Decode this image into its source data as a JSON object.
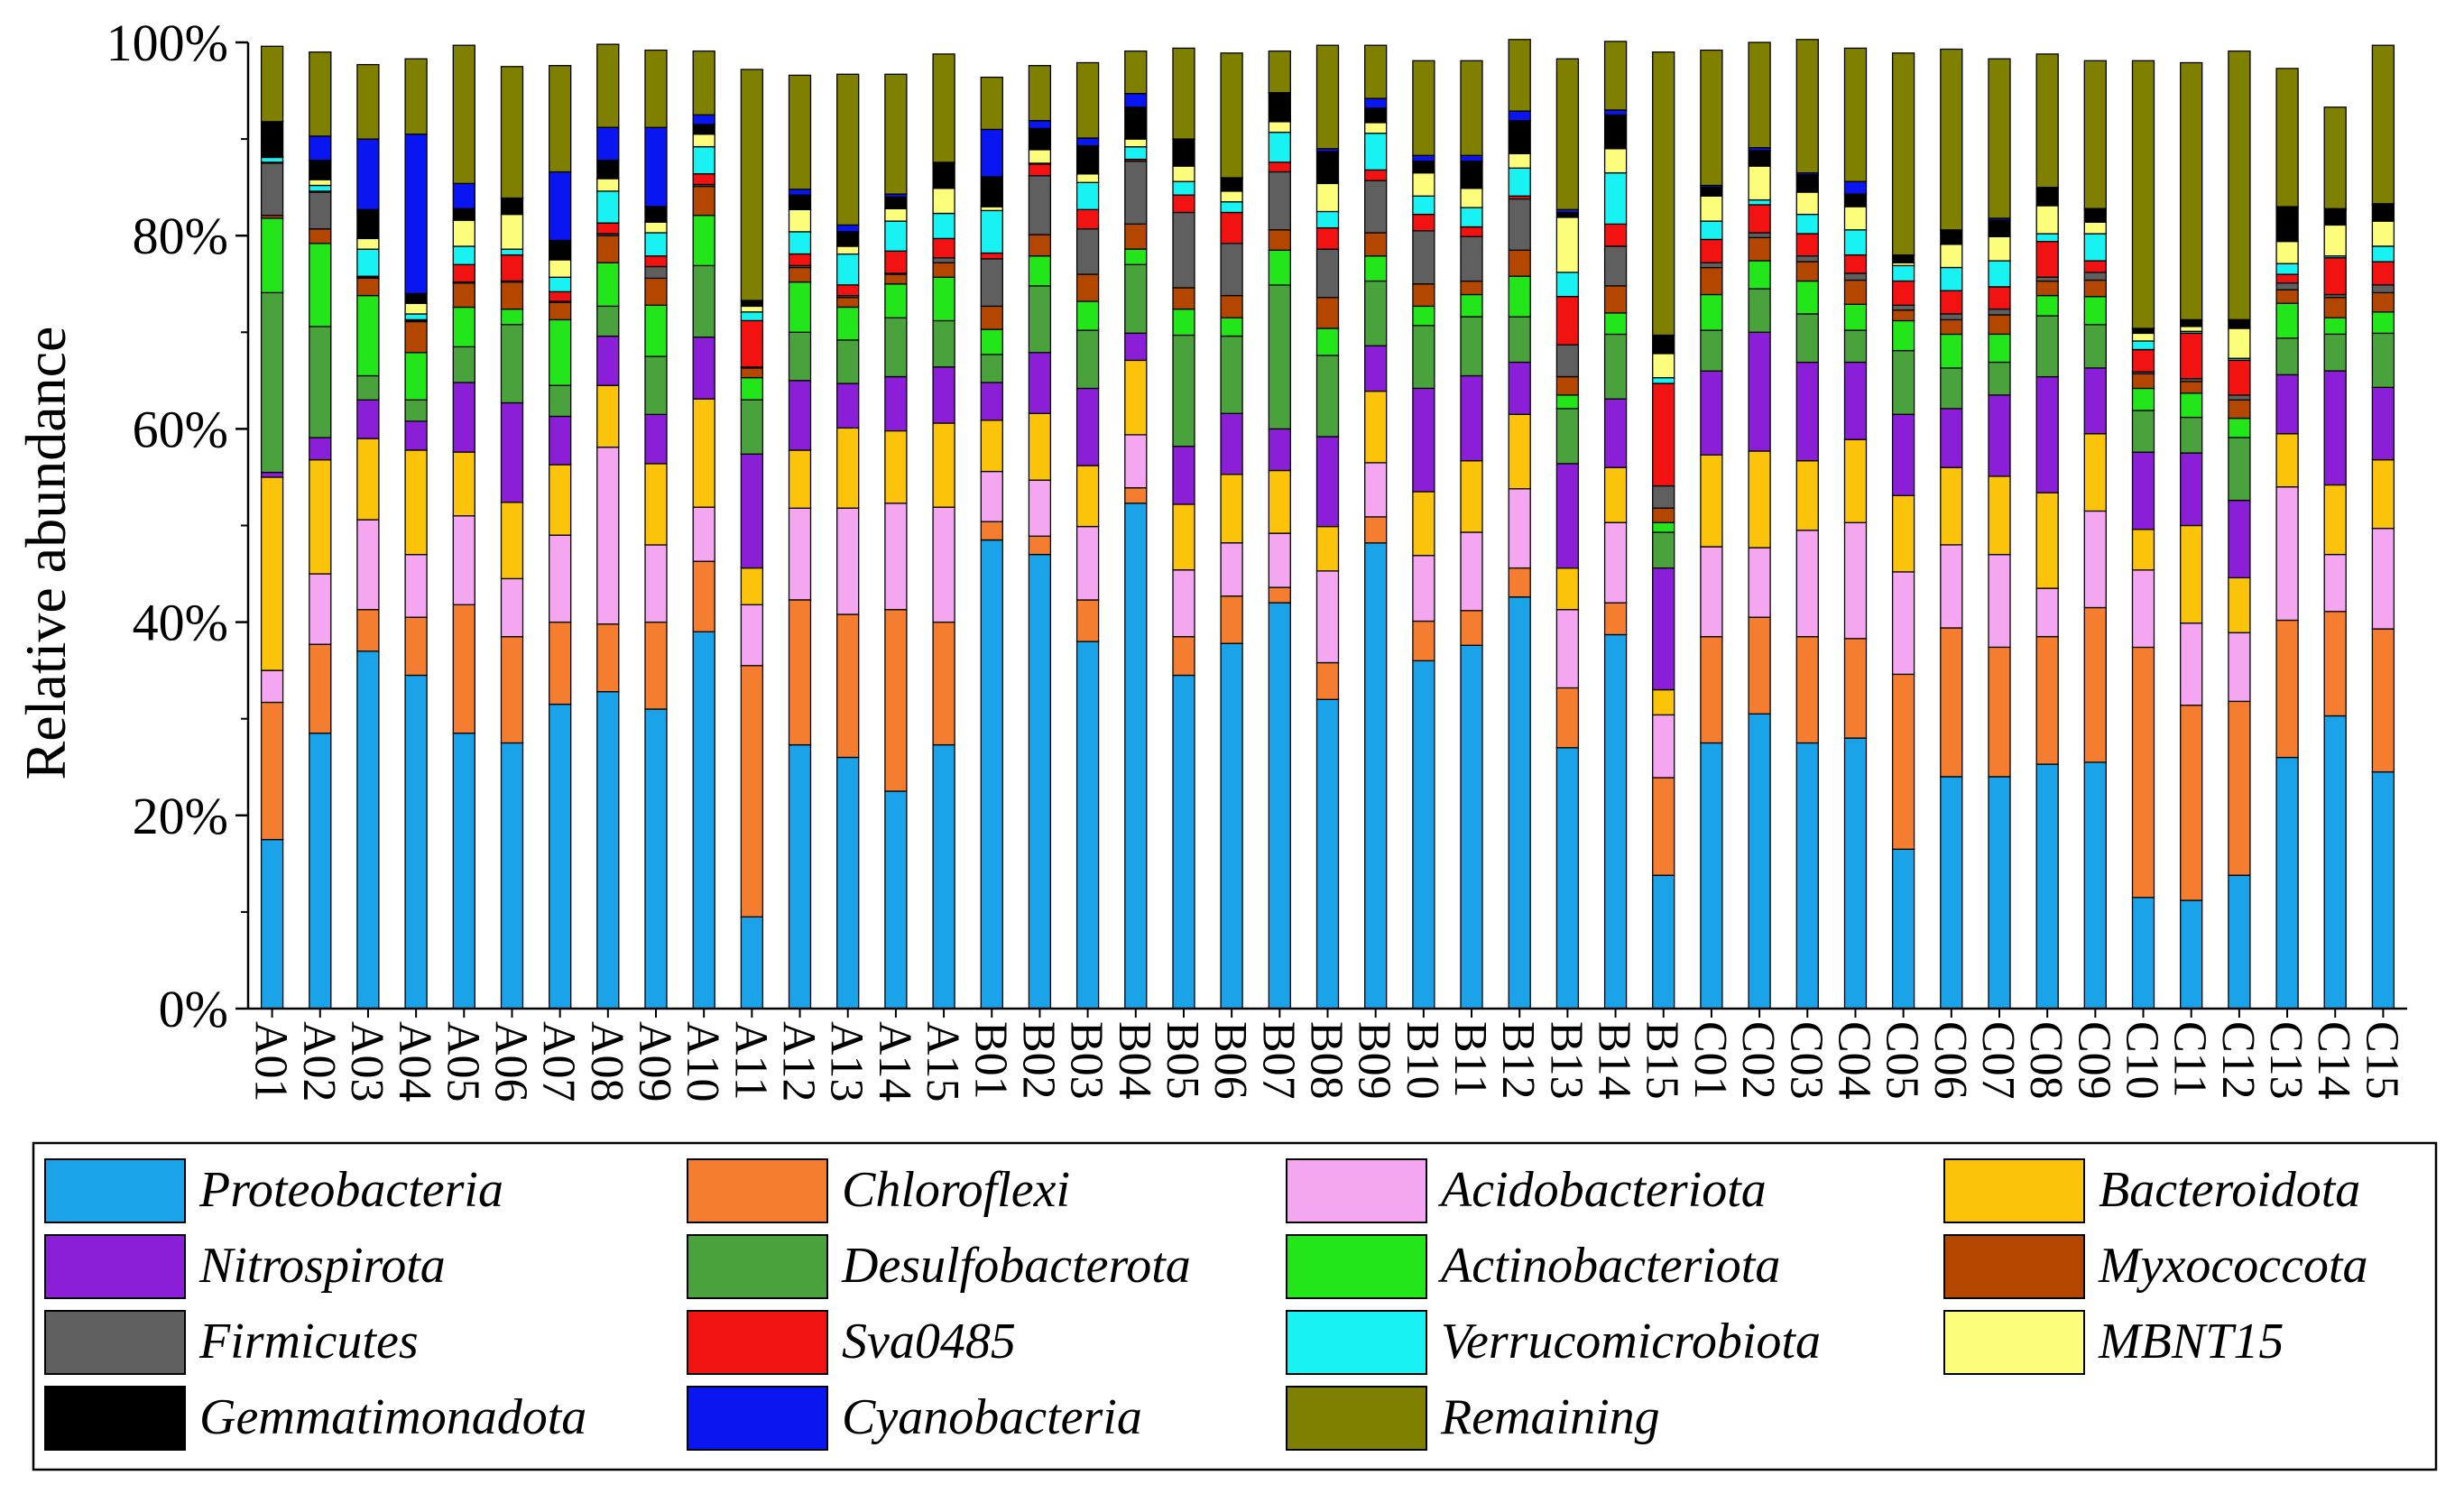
{
  "chart_data": {
    "type": "bar",
    "stacked": true,
    "title": "",
    "xlabel": "",
    "ylabel": "Relative abundance",
    "ylim": [
      0,
      100
    ],
    "yticks": [
      "0%",
      "20%",
      "40%",
      "60%",
      "80%",
      "100%"
    ],
    "legend_position": "bottom",
    "categories": [
      "A01",
      "A02",
      "A03",
      "A04",
      "A05",
      "A06",
      "A07",
      "A08",
      "A09",
      "A10",
      "A11",
      "A12",
      "A13",
      "A14",
      "A15",
      "B01",
      "B02",
      "B03",
      "B04",
      "B05",
      "B06",
      "B07",
      "B08",
      "B09",
      "B10",
      "B11",
      "B12",
      "B13",
      "B14",
      "B15",
      "C01",
      "C02",
      "C03",
      "C04",
      "C05",
      "C06",
      "C07",
      "C08",
      "C09",
      "C10",
      "C11",
      "C12",
      "C13",
      "C14",
      "C15"
    ],
    "series": [
      {
        "name": "Proteobacteria",
        "color": "#1aa3e8",
        "values": [
          17.5,
          28.5,
          37,
          34.5,
          28.5,
          27.5,
          31.5,
          32.8,
          31,
          39,
          9.5,
          27.3,
          26,
          22.5,
          27.3,
          48.5,
          47,
          38,
          52.3,
          34.5,
          37.8,
          42,
          32,
          48.2,
          36,
          37.6,
          42.6,
          27,
          38.7,
          13.8,
          27.5,
          30.5,
          27.5,
          28,
          16.5,
          24,
          24,
          25.3,
          25.5,
          11.5,
          11.2,
          13.8,
          26,
          30.3,
          24.5
        ]
      },
      {
        "name": "Chloroflexi",
        "color": "#f47d30",
        "values": [
          14.2,
          9.2,
          4.3,
          6,
          13.3,
          11,
          8.5,
          7,
          9,
          7.3,
          26,
          15,
          14.8,
          18.8,
          12.7,
          1.9,
          1.9,
          4.3,
          1.6,
          4,
          4.9,
          1.6,
          3.8,
          2.7,
          4.1,
          3.6,
          3,
          6.2,
          3.3,
          10.1,
          11,
          10,
          11,
          10.3,
          18.1,
          15.4,
          13.4,
          13.2,
          16,
          25.9,
          20.2,
          18,
          14.2,
          10.8,
          14.8
        ]
      },
      {
        "name": "Acidobacteriota",
        "color": "#f4a7f0",
        "values": [
          3.3,
          7.3,
          9.3,
          6.5,
          9.2,
          6,
          9,
          18.3,
          8,
          5.6,
          6.3,
          9.5,
          11,
          11,
          11.9,
          5.2,
          5.8,
          7.6,
          5.5,
          6.9,
          5.5,
          5.6,
          9.5,
          5.6,
          6.8,
          8.1,
          8.2,
          8.1,
          8.3,
          6.5,
          9.3,
          7.2,
          11,
          12,
          10.6,
          8.6,
          9.6,
          5,
          10,
          8,
          8.5,
          7.1,
          13.8,
          5.9,
          10.4
        ]
      },
      {
        "name": "Bacteroidota",
        "color": "#fbc30a",
        "values": [
          20,
          11.8,
          8.4,
          10.8,
          6.6,
          7.9,
          7.3,
          6.4,
          8.4,
          11.2,
          3.8,
          6,
          8.3,
          7.5,
          8.7,
          5.3,
          6.9,
          6.3,
          7.7,
          6.8,
          7.1,
          6.5,
          4.6,
          7.4,
          6.6,
          7.4,
          7.7,
          4.3,
          5.7,
          2.6,
          9.5,
          10,
          7.2,
          8.6,
          7.9,
          8,
          8.1,
          9.9,
          8,
          4.2,
          10.1,
          5.7,
          5.5,
          7.2,
          7.1
        ]
      },
      {
        "name": "Nitrospirota",
        "color": "#8b1fd8",
        "values": [
          0.5,
          2.3,
          4,
          3,
          7.2,
          10.3,
          5,
          5.1,
          5.1,
          6.4,
          11.8,
          7.2,
          4.6,
          5.6,
          5.8,
          3.9,
          6.3,
          8,
          2.8,
          6,
          6.3,
          4.3,
          9.3,
          4.7,
          10.7,
          8.8,
          5.4,
          10.8,
          7.1,
          12.6,
          8.7,
          12.3,
          10.2,
          8,
          8.4,
          6.1,
          8.4,
          12,
          6.8,
          8,
          7.5,
          8,
          6.1,
          11.8,
          7.5
        ]
      },
      {
        "name": "Desulfobacterota",
        "color": "#4aa23c",
        "values": [
          18.6,
          11.5,
          2.5,
          2.2,
          3.7,
          8.1,
          3.2,
          3.1,
          6,
          7.4,
          5.6,
          5,
          4.5,
          6.1,
          4.8,
          2.9,
          6.9,
          6,
          7.1,
          11.5,
          8,
          14.9,
          8.4,
          6.7,
          6.5,
          6.1,
          4.7,
          5.7,
          6.7,
          3.7,
          4.2,
          4.5,
          5,
          3.3,
          6.6,
          4.2,
          3.4,
          6.3,
          4.5,
          4.3,
          3.7,
          6.5,
          3.8,
          3.8,
          5.6
        ]
      },
      {
        "name": "Actinobacteriota",
        "color": "#22e619",
        "values": [
          7.7,
          8.6,
          8.3,
          4.9,
          4.1,
          1.6,
          6.8,
          4.5,
          5.3,
          5.2,
          2.3,
          5.2,
          3.4,
          3.5,
          4.5,
          2.6,
          3.1,
          3,
          1.6,
          2.7,
          1.9,
          3.6,
          2.8,
          2.6,
          2,
          2.3,
          4.2,
          1.4,
          2.2,
          1,
          3.7,
          2.9,
          3.4,
          2.7,
          3.1,
          3.5,
          2.9,
          2.1,
          2.9,
          2.3,
          2.5,
          2,
          3.6,
          1.7,
          2.2
        ]
      },
      {
        "name": "Myxococcota",
        "color": "#b34700",
        "values": [
          0.3,
          1.5,
          1.8,
          3.2,
          2.5,
          2.8,
          1.8,
          2.8,
          2.8,
          3,
          1,
          1.5,
          1,
          1,
          1.5,
          2.4,
          2.2,
          2.8,
          2.6,
          2.2,
          2.3,
          2.1,
          3.2,
          2.4,
          2.3,
          1.4,
          2.7,
          1.9,
          2.8,
          1.5,
          2.8,
          2.4,
          2,
          2.5,
          1.1,
          1.5,
          2,
          1.5,
          1.7,
          1.5,
          1.2,
          1.9,
          1.4,
          2.1,
          2
        ]
      },
      {
        "name": "Firmicutes",
        "color": "#5f5f5f",
        "values": [
          5.4,
          3.8,
          0.1,
          0.1,
          0.1,
          0.1,
          0.1,
          0.2,
          1.2,
          0.2,
          0.1,
          0.2,
          0.2,
          0.1,
          0.5,
          4.9,
          6.1,
          4.7,
          6.5,
          7.8,
          5.4,
          6,
          5,
          5.4,
          5.5,
          4.6,
          5.3,
          3.3,
          4.1,
          2.3,
          0.5,
          0.5,
          0.6,
          0.7,
          0.5,
          0.6,
          0.6,
          0.4,
          0.8,
          0.2,
          0.3,
          0.5,
          0.7,
          0.3,
          0.8
        ]
      },
      {
        "name": "Sva0485",
        "color": "#f21212",
        "values": [
          0.1,
          0.1,
          0.1,
          0.1,
          1.8,
          2.7,
          1,
          1.1,
          1.1,
          1.1,
          4.8,
          1.2,
          1.1,
          2.3,
          2,
          0.6,
          1.2,
          2,
          0.2,
          1.8,
          3.2,
          1,
          2.2,
          1.1,
          1.7,
          1,
          0.3,
          5,
          2.3,
          10.6,
          2.4,
          2.9,
          2.3,
          1.9,
          2.5,
          2.4,
          2.3,
          3.7,
          1.2,
          2.3,
          4.7,
          3.6,
          0.9,
          3.8,
          2.4
        ]
      },
      {
        "name": "Verrucomicrobiota",
        "color": "#19f2f2",
        "values": [
          0.5,
          0.6,
          2.8,
          0.6,
          1.9,
          0.6,
          1.5,
          3.3,
          2.4,
          2.8,
          0.9,
          2.3,
          3.2,
          3.1,
          2.6,
          4.4,
          0.1,
          2.8,
          1.3,
          1.4,
          1.1,
          3.1,
          1.7,
          3.8,
          1.9,
          2,
          2.9,
          2.5,
          5.3,
          0.6,
          1.9,
          0.5,
          2,
          2.6,
          1.6,
          2.4,
          2.7,
          0.8,
          2.8,
          0.9,
          0.2,
          0.2,
          1.1,
          0.2,
          1.6
        ]
      },
      {
        "name": "MBNT15",
        "color": "#fdfd7c",
        "values": [
          0.1,
          0.6,
          1.1,
          1.1,
          2.7,
          3.6,
          1.8,
          1.3,
          1.1,
          1.3,
          0.6,
          2.3,
          0.8,
          1.3,
          2.6,
          0.4,
          1.4,
          0.9,
          0.8,
          1.6,
          1.1,
          1.1,
          2.9,
          1.1,
          2.4,
          2,
          1.5,
          5.7,
          2.5,
          2.5,
          2.6,
          3.5,
          2.3,
          2.4,
          0.3,
          2.4,
          2.5,
          2.9,
          1.2,
          0.8,
          0.5,
          3.1,
          2.3,
          3.2,
          2.6
        ]
      },
      {
        "name": "Gemmatimonadota",
        "color": "#000000",
        "values": [
          3.5,
          2,
          3,
          1,
          1.2,
          1.6,
          2,
          1.9,
          1.6,
          1,
          0.5,
          1.5,
          1.5,
          1.2,
          2.6,
          3.1,
          2.2,
          2.9,
          3.3,
          2.7,
          1.3,
          2.9,
          3.3,
          1.5,
          1.2,
          2.8,
          3.4,
          0.5,
          3.5,
          1.8,
          0.9,
          1.6,
          1.8,
          1.3,
          0.7,
          1.4,
          1.7,
          1.8,
          1.3,
          0.4,
          0.6,
          0.8,
          3.5,
          1.6,
          1.7
        ]
      },
      {
        "name": "Cyanobacteria",
        "color": "#0a16f2",
        "values": [
          0.1,
          2.5,
          7.3,
          16.5,
          2.6,
          0.1,
          7.1,
          3.4,
          8.2,
          1,
          0.1,
          0.6,
          0.7,
          0.3,
          0.1,
          4.9,
          0.8,
          0.8,
          1.4,
          0.1,
          0.1,
          0.1,
          0.3,
          1,
          0.6,
          0.6,
          1,
          0.3,
          0.5,
          0.1,
          0.2,
          0.3,
          0.2,
          1.3,
          0.1,
          0.1,
          0.2,
          0.1,
          0.1,
          0.1,
          0.1,
          0.1,
          0.1,
          0.1,
          0.1
        ]
      },
      {
        "name": "Remaining",
        "color": "#808000",
        "values": [
          7.8,
          8.7,
          7.7,
          7.8,
          14.3,
          13.6,
          11,
          8.6,
          8,
          6.6,
          23.9,
          11.8,
          15.6,
          12.4,
          11.2,
          5.4,
          5.7,
          7.8,
          4.4,
          9.4,
          12.9,
          4.3,
          10.7,
          5.5,
          9.8,
          9.8,
          7.4,
          15.6,
          7.1,
          29.3,
          14,
          10.9,
          13.8,
          13.8,
          20.9,
          18.7,
          16.5,
          13.8,
          15.3,
          27.7,
          26.6,
          27.8,
          14.3,
          10.5,
          16.4
        ]
      }
    ]
  }
}
